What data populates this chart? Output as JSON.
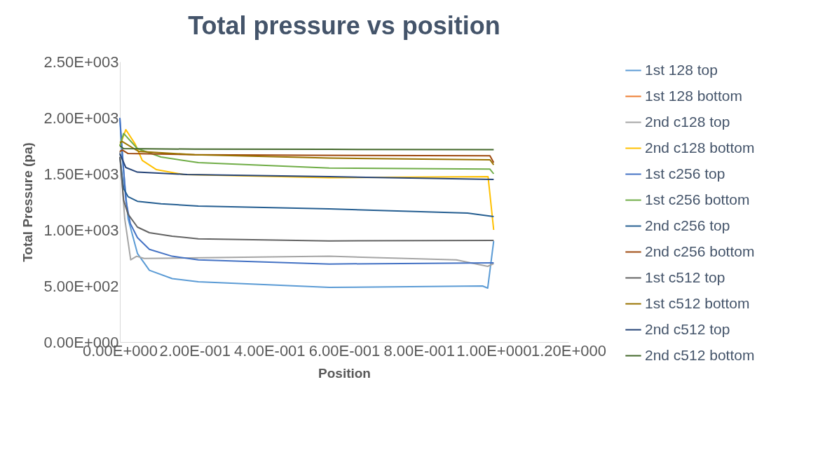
{
  "chart_data": {
    "type": "line",
    "title": "Total pressure vs position",
    "xlabel": "Position",
    "ylabel": "Total Pressure (pa)",
    "xlim": [
      0,
      1.2
    ],
    "ylim": [
      0,
      2500
    ],
    "xticks": [
      {
        "value": 0,
        "label": "0.00E+000"
      },
      {
        "value": 0.2,
        "label": "2.00E-001"
      },
      {
        "value": 0.4,
        "label": "4.00E-001"
      },
      {
        "value": 0.6,
        "label": "6.00E-001"
      },
      {
        "value": 0.8,
        "label": "8.00E-001"
      },
      {
        "value": 1,
        "label": "1.00E+000"
      },
      {
        "value": 1.2,
        "label": "1.20E+000"
      }
    ],
    "yticks": [
      {
        "value": 0,
        "label": "0.00E+000"
      },
      {
        "value": 500,
        "label": "5.00E+002"
      },
      {
        "value": 1000,
        "label": "1.00E+003"
      },
      {
        "value": 1500,
        "label": "1.50E+003"
      },
      {
        "value": 2000,
        "label": "2.00E+003"
      },
      {
        "value": 2500,
        "label": "2.50E+003"
      }
    ],
    "grid": false,
    "legend": "right",
    "marker": "none",
    "line_style": "solid",
    "series": [
      {
        "name": "1st 128 top",
        "color": "#5b9bd5",
        "x": [
          0,
          0.005,
          0.022,
          0.047,
          0.079,
          0.14,
          0.21,
          0.56,
          0.97,
          0.984,
          1
        ],
        "values": [
          1994,
          1700,
          1100,
          790,
          640,
          566,
          537,
          487,
          500,
          481,
          900
        ]
      },
      {
        "name": "1st 128 bottom",
        "color": "#ed7d31"
      },
      {
        "name": "2nd c128 top",
        "color": "#a5a5a5",
        "x": [
          0,
          0.013,
          0.029,
          0.045,
          0.065,
          0.18,
          0.56,
          0.9,
          0.984,
          1
        ],
        "values": [
          1700,
          1100,
          733,
          765,
          745,
          750,
          765,
          733,
          675,
          700
        ]
      },
      {
        "name": "2nd c128 bottom",
        "color": "#ffc000",
        "x": [
          0,
          0.016,
          0.041,
          0.06,
          0.098,
          0.17,
          0.56,
          0.985,
          1
        ],
        "values": [
          1750,
          1894,
          1765,
          1619,
          1537,
          1494,
          1465,
          1475,
          1000
        ]
      },
      {
        "name": "1st c256 top",
        "color": "#4472c4",
        "x": [
          0,
          0.016,
          0.028,
          0.047,
          0.079,
          0.14,
          0.21,
          0.56,
          1
        ],
        "values": [
          2000,
          1265,
          1056,
          931,
          827,
          765,
          733,
          696,
          706
        ]
      },
      {
        "name": "1st c256 bottom",
        "color": "#70ad47",
        "x": [
          0,
          0.01,
          0.047,
          0.11,
          0.21,
          0.56,
          0.99,
          1
        ],
        "values": [
          1750,
          1860,
          1725,
          1650,
          1600,
          1552,
          1542,
          1500
        ]
      },
      {
        "name": "2nd c256 top",
        "color": "#255e91",
        "x": [
          0,
          0.01,
          0.022,
          0.047,
          0.11,
          0.21,
          0.56,
          0.93,
          1
        ],
        "values": [
          1650,
          1369,
          1296,
          1255,
          1233,
          1213,
          1187,
          1150,
          1119
        ]
      },
      {
        "name": "2nd c256 bottom",
        "color": "#9e480e",
        "x": [
          0,
          0.007,
          0.022,
          0.2,
          0.5,
          0.99,
          1
        ],
        "values": [
          1700,
          1712,
          1681,
          1671,
          1665,
          1661,
          1600
        ]
      },
      {
        "name": "1st c512 top",
        "color": "#636363",
        "x": [
          0,
          0.01,
          0.022,
          0.047,
          0.079,
          0.14,
          0.21,
          0.56,
          1
        ],
        "values": [
          1650,
          1265,
          1140,
          1025,
          975,
          944,
          921,
          902,
          906
        ]
      },
      {
        "name": "1st c512 bottom",
        "color": "#997300",
        "x": [
          0,
          0.007,
          0.05,
          0.2,
          0.56,
          0.99,
          1
        ],
        "values": [
          1780,
          1787,
          1700,
          1671,
          1640,
          1625,
          1580
        ]
      },
      {
        "name": "2nd c512 top",
        "color": "#264478",
        "x": [
          0,
          0.016,
          0.047,
          0.18,
          0.56,
          1
        ],
        "values": [
          1680,
          1556,
          1515,
          1494,
          1475,
          1450
        ]
      },
      {
        "name": "2nd c512 bottom",
        "color": "#43682b",
        "x": [
          0,
          0.01,
          0.2,
          0.56,
          1
        ],
        "values": [
          1750,
          1725,
          1720,
          1718,
          1715
        ]
      }
    ]
  }
}
